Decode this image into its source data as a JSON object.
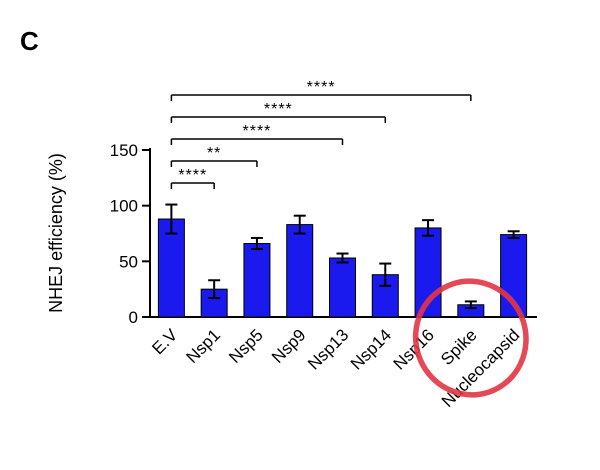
{
  "panel_label": "C",
  "chart_data": {
    "type": "bar",
    "title": "",
    "xlabel": "",
    "ylabel": "NHEJ efficiency (%)",
    "ylim": [
      0,
      150
    ],
    "yticks": [
      0,
      50,
      100,
      150
    ],
    "grid": false,
    "legend": "none",
    "categories": [
      "E.V",
      "Nsp1",
      "Nsp5",
      "Nsp9",
      "Nsp13",
      "Nsp14",
      "Nsp16",
      "Spike",
      "Nucleocapsid"
    ],
    "values": [
      88,
      25,
      66,
      83,
      53,
      38,
      80,
      11,
      74
    ],
    "errors": [
      13,
      8,
      5,
      8,
      4,
      10,
      7,
      3,
      3
    ],
    "bar_color": "#1a1aee",
    "error_color": "#000000",
    "axis_color": "#000000",
    "significance": [
      {
        "from": "E.V",
        "to": "Nsp1",
        "label": "****"
      },
      {
        "from": "E.V",
        "to": "Nsp5",
        "label": "**"
      },
      {
        "from": "E.V",
        "to": "Nsp13",
        "label": "****"
      },
      {
        "from": "E.V",
        "to": "Nsp14",
        "label": "****"
      },
      {
        "from": "E.V",
        "to": "Spike",
        "label": "****"
      }
    ],
    "annotation_circle": {
      "category": "Spike",
      "color": "#e23544"
    }
  }
}
